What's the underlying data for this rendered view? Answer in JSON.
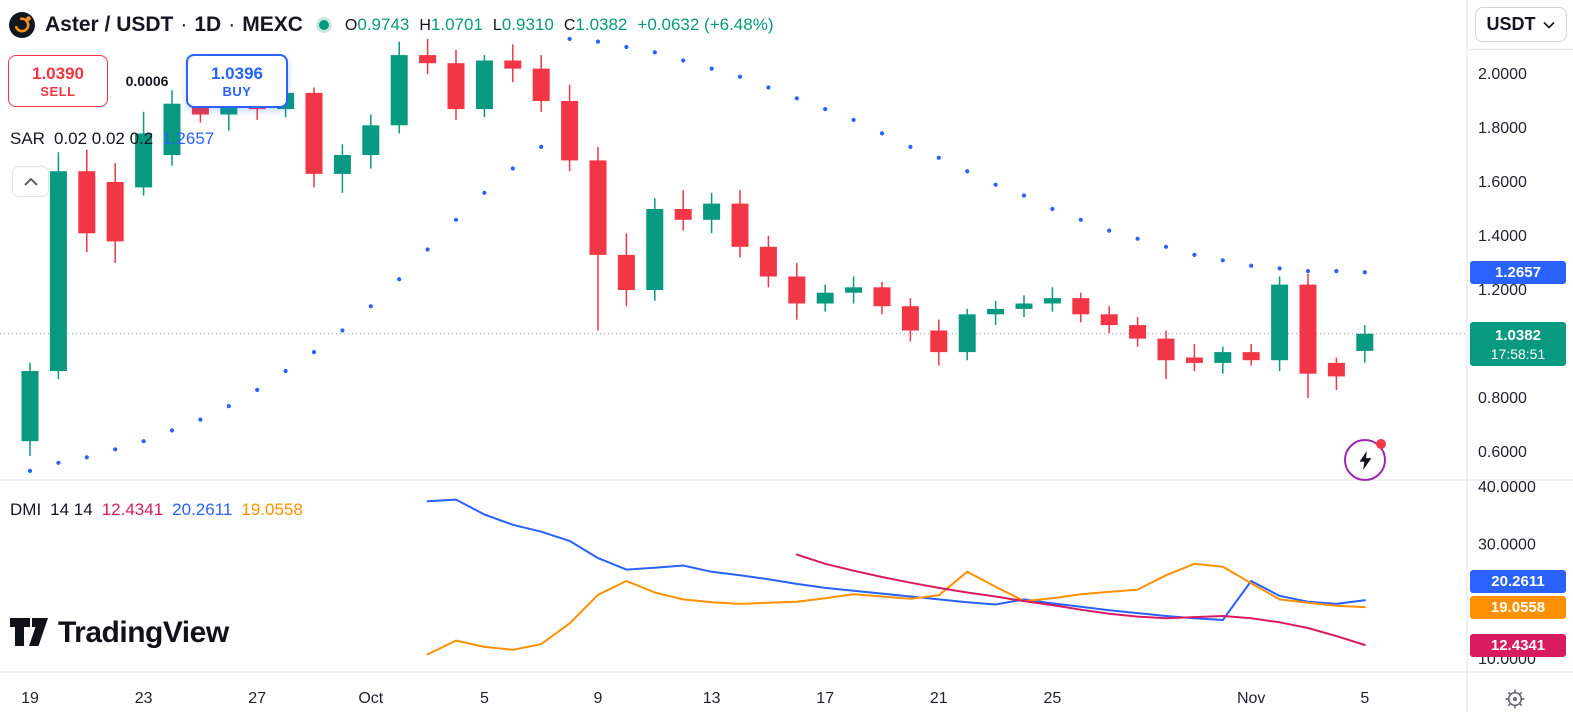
{
  "header": {
    "symbol": "Aster / USDT",
    "separator": "·",
    "interval": "1D",
    "exchange": "MEXC",
    "ohlc": {
      "o_label": "O",
      "o": "0.9743",
      "h_label": "H",
      "h": "1.0701",
      "l_label": "L",
      "l": "0.9310",
      "c_label": "C",
      "c": "1.0382",
      "change": "+0.0632 (+6.48%)"
    },
    "currency": "USDT"
  },
  "trade_widget": {
    "sell_price": "1.0390",
    "sell_label": "SELL",
    "spread": "0.0006",
    "buy_price": "1.0396",
    "buy_label": "BUY"
  },
  "sar_legend": {
    "name": "SAR",
    "params": "0.02 0.02 0.2",
    "value": "1.2657"
  },
  "dmi_legend": {
    "name": "DMI",
    "params": "14 14",
    "adx": "12.4341",
    "plus_di": "20.2611",
    "minus_di": "19.0558"
  },
  "price_badges": {
    "sar_value": "1.2657",
    "last_price": "1.0382",
    "countdown": "17:58:51"
  },
  "dmi_badges": {
    "blue": "20.2611",
    "orange": "19.0558",
    "pink": "12.4341"
  },
  "brand": {
    "logo_text": "TradingView"
  },
  "colors": {
    "up": "#089981",
    "down": "#f23645",
    "sar_dot": "#2962ff",
    "dmi_adx": "#d81b60",
    "dmi_plus_di": "#2962ff",
    "dmi_minus_di": "#ff9100",
    "sell_red": "#f23645",
    "buy_blue": "#2962ff",
    "last_price_teal": "#089981",
    "flash_purple": "#9c27b0"
  },
  "chart_data": {
    "type": "candlestick",
    "title": "Aster / USDT · 1D · MEXC",
    "current_bar": {
      "open": 0.9743,
      "high": 1.0701,
      "low": 0.931,
      "close": 1.0382,
      "change": 0.0632,
      "change_pct": 6.48
    },
    "last_price": 1.0382,
    "sar_last": 1.2657,
    "price_axis": {
      "min": 0.4963,
      "max": 2.2741,
      "ticks": [
        {
          "text": "2.0000",
          "v": 2.0
        },
        {
          "text": "1.8000",
          "v": 1.8
        },
        {
          "text": "1.6000",
          "v": 1.6
        },
        {
          "text": "1.4000",
          "v": 1.4
        },
        {
          "text": "1.2000",
          "v": 1.2
        },
        {
          "text": "1.0000",
          "v": 1.0
        },
        {
          "text": "0.8000",
          "v": 0.8
        },
        {
          "text": "0.6000",
          "v": 0.6
        }
      ]
    },
    "time_axis": {
      "labels": [
        {
          "text": "19",
          "i": 0
        },
        {
          "text": "23",
          "i": 4
        },
        {
          "text": "27",
          "i": 8
        },
        {
          "text": "Oct",
          "i": 12
        },
        {
          "text": "5",
          "i": 16
        },
        {
          "text": "9",
          "i": 20
        },
        {
          "text": "13",
          "i": 24
        },
        {
          "text": "17",
          "i": 28
        },
        {
          "text": "21",
          "i": 32
        },
        {
          "text": "25",
          "i": 36
        },
        {
          "text": "Nov",
          "i": 43
        },
        {
          "text": "5",
          "i": 47
        }
      ]
    },
    "candles": [
      [
        0.64,
        0.93,
        0.585,
        0.9
      ],
      [
        0.9,
        1.71,
        0.87,
        1.64
      ],
      [
        1.64,
        1.72,
        1.34,
        1.41
      ],
      [
        1.6,
        1.67,
        1.3,
        1.38
      ],
      [
        1.58,
        1.86,
        1.55,
        1.78
      ],
      [
        1.7,
        1.94,
        1.66,
        1.89
      ],
      [
        1.89,
        1.99,
        1.82,
        1.85
      ],
      [
        1.85,
        1.95,
        1.79,
        1.91
      ],
      [
        1.91,
        1.97,
        1.83,
        1.87
      ],
      [
        1.87,
        1.96,
        1.84,
        1.93
      ],
      [
        1.93,
        1.95,
        1.58,
        1.63
      ],
      [
        1.63,
        1.74,
        1.56,
        1.7
      ],
      [
        1.7,
        1.85,
        1.65,
        1.81
      ],
      [
        1.81,
        2.12,
        1.78,
        2.07
      ],
      [
        2.07,
        2.13,
        2.0,
        2.04
      ],
      [
        2.04,
        2.09,
        1.83,
        1.87
      ],
      [
        1.87,
        2.07,
        1.84,
        2.05
      ],
      [
        2.05,
        2.11,
        1.97,
        2.02
      ],
      [
        2.02,
        2.07,
        1.86,
        1.9
      ],
      [
        1.9,
        1.96,
        1.64,
        1.68
      ],
      [
        1.68,
        1.73,
        1.05,
        1.33
      ],
      [
        1.33,
        1.41,
        1.14,
        1.2
      ],
      [
        1.2,
        1.54,
        1.16,
        1.5
      ],
      [
        1.5,
        1.57,
        1.42,
        1.46
      ],
      [
        1.46,
        1.56,
        1.41,
        1.52
      ],
      [
        1.52,
        1.57,
        1.32,
        1.36
      ],
      [
        1.36,
        1.4,
        1.21,
        1.25
      ],
      [
        1.25,
        1.3,
        1.09,
        1.15
      ],
      [
        1.15,
        1.22,
        1.12,
        1.19
      ],
      [
        1.19,
        1.25,
        1.15,
        1.21
      ],
      [
        1.21,
        1.23,
        1.11,
        1.14
      ],
      [
        1.14,
        1.17,
        1.01,
        1.05
      ],
      [
        1.05,
        1.09,
        0.92,
        0.97
      ],
      [
        0.97,
        1.13,
        0.94,
        1.11
      ],
      [
        1.11,
        1.16,
        1.07,
        1.13
      ],
      [
        1.13,
        1.18,
        1.1,
        1.15
      ],
      [
        1.15,
        1.21,
        1.12,
        1.17
      ],
      [
        1.17,
        1.19,
        1.08,
        1.11
      ],
      [
        1.11,
        1.14,
        1.04,
        1.07
      ],
      [
        1.07,
        1.1,
        0.99,
        1.02
      ],
      [
        1.02,
        1.05,
        0.87,
        0.94
      ],
      [
        0.95,
        1.0,
        0.9,
        0.93
      ],
      [
        0.93,
        0.99,
        0.89,
        0.97
      ],
      [
        0.97,
        1.0,
        0.92,
        0.94
      ],
      [
        0.94,
        1.25,
        0.9,
        1.22
      ],
      [
        1.22,
        1.26,
        0.8,
        0.89
      ],
      [
        0.93,
        0.95,
        0.83,
        0.88
      ],
      [
        0.9743,
        1.0701,
        0.931,
        1.0382
      ]
    ],
    "sar": [
      0.53,
      0.56,
      0.58,
      0.61,
      0.64,
      0.68,
      0.72,
      0.77,
      0.83,
      0.9,
      0.97,
      1.05,
      1.14,
      1.24,
      1.35,
      1.46,
      1.56,
      1.65,
      1.73,
      2.13,
      2.12,
      2.1,
      2.08,
      2.05,
      2.02,
      1.99,
      1.95,
      1.91,
      1.87,
      1.83,
      1.78,
      1.73,
      1.69,
      1.64,
      1.59,
      1.55,
      1.5,
      1.46,
      1.42,
      1.39,
      1.36,
      1.33,
      1.31,
      1.29,
      1.28,
      1.27,
      1.27,
      1.2657
    ],
    "dmi": {
      "axis": {
        "min": 7.73,
        "max": 41.22,
        "ticks": [
          {
            "text": "40.0000",
            "v": 40
          },
          {
            "text": "30.0000",
            "v": 30
          },
          {
            "text": "10.0000",
            "v": 10
          }
        ]
      },
      "series": [
        {
          "name": "+DI",
          "color": "#2962ff",
          "last": 20.2611,
          "points": [
            [
              14,
              37.5
            ],
            [
              15,
              37.8
            ],
            [
              16,
              35.2
            ],
            [
              17,
              33.4
            ],
            [
              18,
              32.2
            ],
            [
              19,
              30.6
            ],
            [
              20,
              27.6
            ],
            [
              21,
              25.6
            ],
            [
              22,
              25.9
            ],
            [
              23,
              26.3
            ],
            [
              24,
              25.2
            ],
            [
              25,
              24.6
            ],
            [
              26,
              23.9
            ],
            [
              27,
              23.1
            ],
            [
              28,
              22.4
            ],
            [
              29,
              21.9
            ],
            [
              30,
              21.4
            ],
            [
              31,
              20.9
            ],
            [
              32,
              20.4
            ],
            [
              33,
              19.9
            ],
            [
              34,
              19.5
            ],
            [
              35,
              20.4
            ],
            [
              36,
              19.7
            ],
            [
              37,
              19.1
            ],
            [
              38,
              18.5
            ],
            [
              39,
              18.0
            ],
            [
              40,
              17.5
            ],
            [
              41,
              17.1
            ],
            [
              42,
              16.8
            ],
            [
              43,
              23.6
            ],
            [
              44,
              21.0
            ],
            [
              45,
              20.0
            ],
            [
              46,
              19.6
            ],
            [
              47,
              20.2611
            ]
          ]
        },
        {
          "name": "-DI",
          "color": "#ff9100",
          "last": 19.0558,
          "points": [
            [
              14,
              10.8
            ],
            [
              15,
              13.2
            ],
            [
              16,
              12.1
            ],
            [
              17,
              11.6
            ],
            [
              18,
              12.6
            ],
            [
              19,
              16.2
            ],
            [
              20,
              21.2
            ],
            [
              21,
              23.6
            ],
            [
              22,
              21.6
            ],
            [
              23,
              20.4
            ],
            [
              24,
              19.9
            ],
            [
              25,
              19.6
            ],
            [
              26,
              19.8
            ],
            [
              27,
              20.0
            ],
            [
              28,
              20.6
            ],
            [
              29,
              21.3
            ],
            [
              30,
              20.9
            ],
            [
              31,
              20.5
            ],
            [
              32,
              21.1
            ],
            [
              33,
              25.2
            ],
            [
              34,
              22.6
            ],
            [
              35,
              20.1
            ],
            [
              36,
              20.6
            ],
            [
              37,
              21.3
            ],
            [
              38,
              21.7
            ],
            [
              39,
              22.1
            ],
            [
              40,
              24.6
            ],
            [
              41,
              26.6
            ],
            [
              42,
              26.1
            ],
            [
              43,
              23.2
            ],
            [
              44,
              20.4
            ],
            [
              45,
              19.8
            ],
            [
              46,
              19.3
            ],
            [
              47,
              19.0558
            ]
          ]
        },
        {
          "name": "ADX",
          "color": "#d81b60",
          "last": 12.4341,
          "points": [
            [
              27,
              28.2
            ],
            [
              28,
              26.6
            ],
            [
              29,
              25.4
            ],
            [
              30,
              24.3
            ],
            [
              31,
              23.3
            ],
            [
              32,
              22.4
            ],
            [
              33,
              21.6
            ],
            [
              34,
              20.9
            ],
            [
              35,
              20.1
            ],
            [
              36,
              19.4
            ],
            [
              37,
              18.6
            ],
            [
              38,
              17.9
            ],
            [
              39,
              17.4
            ],
            [
              40,
              17.1
            ],
            [
              41,
              17.3
            ],
            [
              42,
              17.5
            ],
            [
              43,
              17.1
            ],
            [
              44,
              16.4
            ],
            [
              45,
              15.4
            ],
            [
              46,
              14.0
            ],
            [
              47,
              12.4341
            ]
          ]
        }
      ]
    }
  }
}
